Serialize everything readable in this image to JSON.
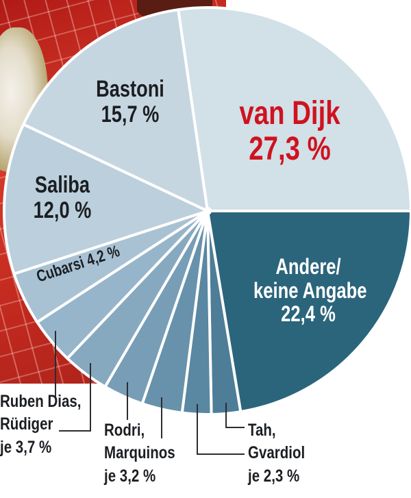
{
  "chart_data": {
    "type": "pie",
    "title": "",
    "start_angle_deg": -8.28,
    "direction": "clockwise",
    "slices": [
      {
        "label": "van Dijk",
        "value": 27.3,
        "display": "27,3 %",
        "color": "#d2e0e8",
        "highlight": true,
        "text_color": "#d0121f"
      },
      {
        "label": "Andere/ keine Angabe",
        "value": 22.4,
        "display": "22,4 %",
        "color": "#2b657c",
        "text_color": "#ffffff"
      },
      {
        "label": "Tah",
        "value": 2.3,
        "display": "2,3 %",
        "color": "#4e7d97"
      },
      {
        "label": "Gvardiol",
        "value": 2.3,
        "display": "2,3 %",
        "color": "#5a87a1"
      },
      {
        "label": "Marquinos",
        "value": 3.2,
        "display": "3,2 %",
        "color": "#6892ab"
      },
      {
        "label": "Rodri",
        "value": 3.2,
        "display": "3,2 %",
        "color": "#779eb6"
      },
      {
        "label": "Rüdiger",
        "value": 3.7,
        "display": "3,7 %",
        "color": "#87a9c0"
      },
      {
        "label": "Ruben Dias",
        "value": 3.7,
        "display": "3,7 %",
        "color": "#97b5ca"
      },
      {
        "label": "Cubarsi",
        "value": 4.2,
        "display": "4,2 %",
        "color": "#a8c2d3"
      },
      {
        "label": "Saliba",
        "value": 12.0,
        "display": "12,0 %",
        "color": "#bccfdc"
      },
      {
        "label": "Bastoni",
        "value": 15.7,
        "display": "15,7 %",
        "color": "#c6d6e1"
      }
    ],
    "center": [
      303,
      308
    ],
    "radius": 297,
    "legend": "none",
    "annotations": [
      "Ruben Dias, Rüdiger je 3,7 %",
      "Rodri, Marquinos je 3,2 %",
      "Tah, Gvardiol je 2,3 %"
    ]
  },
  "labels": {
    "van_dijk": {
      "name": "van Dijk",
      "pct": "27,3 %"
    },
    "bastoni": {
      "name": "Bastoni",
      "pct": "15,7 %"
    },
    "saliba": {
      "name": "Saliba",
      "pct": "12,0 %"
    },
    "cubarsi": "Cubarsi 4,2 %",
    "andere": {
      "line1": "Andere/",
      "line2": "keine Angabe",
      "pct": "22,4 %"
    },
    "dias_ruediger": {
      "line1": "Ruben Dias,",
      "line2": "Rüdiger",
      "pct": "je 3,7 %"
    },
    "rodri_marquinos": {
      "line1": "Rodri,",
      "line2": "Marquinos",
      "pct": "je 3,2 %"
    },
    "tah_gvardiol": {
      "line1": "Tah,",
      "line2": "Gvardiol",
      "pct": "je 2,3 %"
    }
  }
}
